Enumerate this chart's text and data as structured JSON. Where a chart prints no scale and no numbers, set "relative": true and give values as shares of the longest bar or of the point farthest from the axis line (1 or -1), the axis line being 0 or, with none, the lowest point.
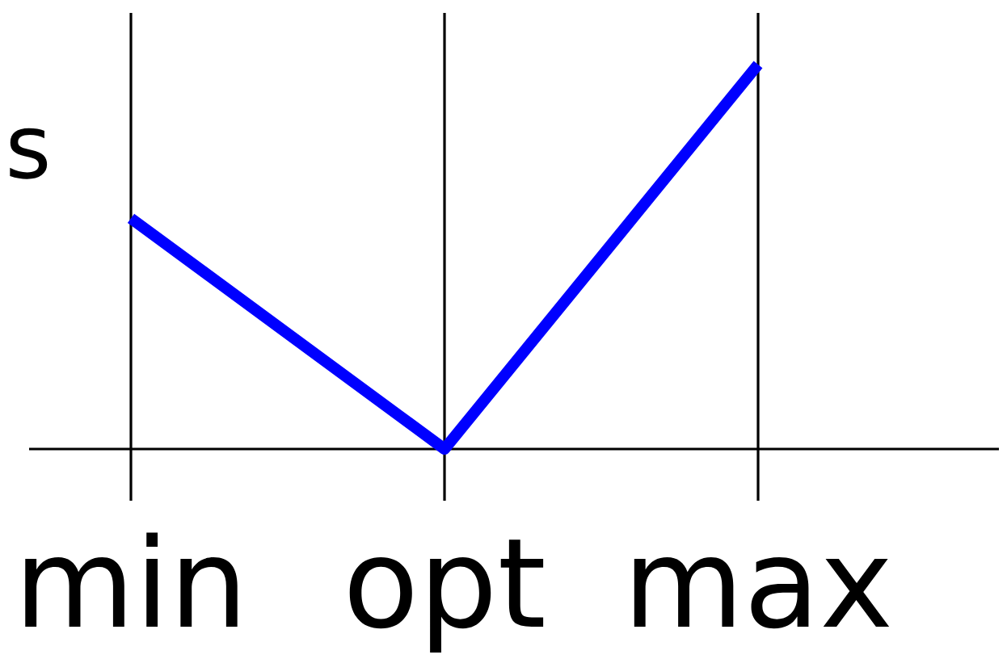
{
  "chart_data": {
    "type": "line",
    "ylabel": "s",
    "categories": [
      "min",
      "opt",
      "max"
    ],
    "relative": true,
    "grid": "x",
    "series": [
      {
        "color": "#0000ff",
        "values": [
          0.6,
          0,
          1
        ]
      }
    ]
  }
}
